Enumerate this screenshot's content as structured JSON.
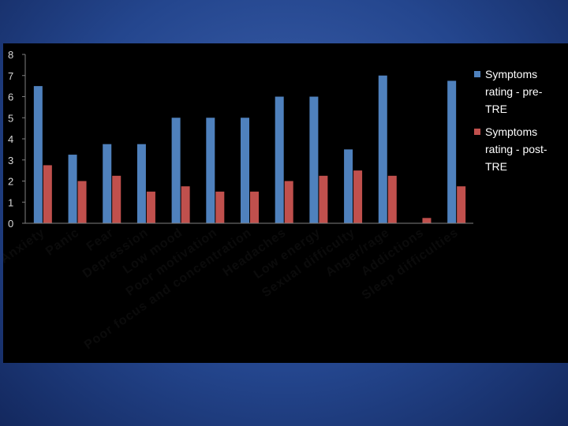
{
  "chart_data": {
    "type": "bar",
    "categories": [
      "Anxiety",
      "Panic",
      "Fear",
      "Depression",
      "Low mood",
      "Poor motivation",
      "Poor focus and concentration",
      "Headaches",
      "Low energy",
      "Sexual difficulty",
      "Anger/rage",
      "Addictions",
      "Sleep difficulties"
    ],
    "series": [
      {
        "name": "Symptoms rating - pre-TRE",
        "legend_lines": [
          "Symptoms",
          "rating - pre-",
          "TRE"
        ],
        "color": "#4f81bd",
        "values": [
          6.5,
          3.25,
          3.75,
          3.75,
          5.0,
          5.0,
          5.0,
          6.0,
          6.0,
          3.5,
          7.0,
          0,
          6.75
        ]
      },
      {
        "name": "Symptoms rating - post-TRE",
        "legend_lines": [
          "Symptoms",
          "rating - post-",
          "TRE"
        ],
        "color": "#c0504d",
        "values": [
          2.75,
          2.0,
          2.25,
          1.5,
          1.75,
          1.5,
          1.5,
          2.0,
          2.25,
          2.5,
          2.25,
          0.25,
          1.75
        ]
      }
    ],
    "title": "",
    "xlabel": "",
    "ylabel": "",
    "ylim": [
      0,
      8
    ],
    "yticks": [
      "0",
      "1",
      "2",
      "3",
      "4",
      "5",
      "6",
      "7",
      "8"
    ],
    "grid": false,
    "legend_position": "right"
  }
}
